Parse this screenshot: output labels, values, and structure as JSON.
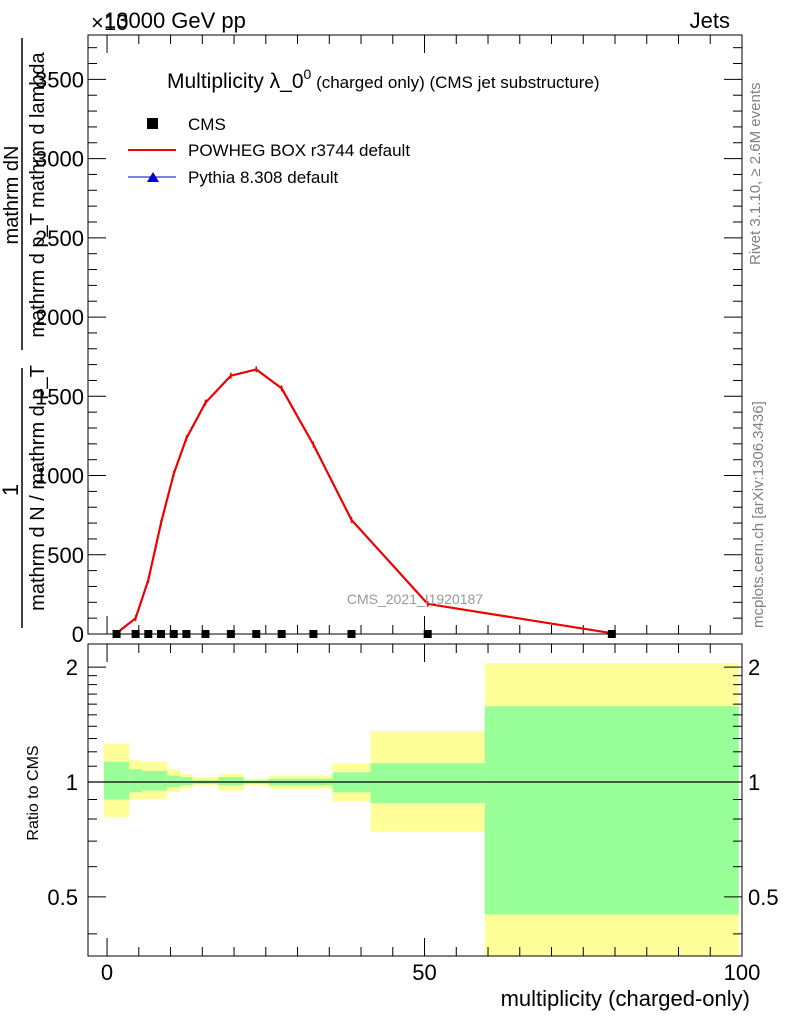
{
  "header": {
    "left": "13000 GeV pp",
    "right": "Jets",
    "exponent": "×10"
  },
  "side_text": {
    "upper": "Rivet 3.1.10, ≥ 2.6M events",
    "lower": "mcplots.cern.ch [arXiv:1306.3436]"
  },
  "colors": {
    "cms": "#000000",
    "powheg": "#ee0000",
    "pythia": "#0000cc",
    "band_inner": "#99ff99",
    "band_outer": "#ffff99"
  },
  "chart_data": [
    {
      "type": "line",
      "title_main": "Multiplicity λ_0",
      "title_sup": "0",
      "title_rest": " (charged only) (CMS jet substructure)",
      "watermark": "CMS_2021_I1920187",
      "ylabel_numerator": "mathrm dN",
      "ylabel_denominator": "mathrm d p_T mathrm d lambda",
      "ylabel_prefix_num": "1",
      "ylabel_prefix_den": "mathrm d N / mathrm d p_T",
      "xlim": [
        -3,
        100
      ],
      "ylim": [
        0,
        3780
      ],
      "yticks": [
        0,
        500,
        1000,
        1500,
        2000,
        2500,
        3000,
        3500
      ],
      "ytick_labels": [
        "0",
        "500",
        "1000",
        "1500",
        "2000",
        "2500",
        "3000",
        "3500"
      ],
      "legend": [
        {
          "label": "CMS",
          "marker": "square"
        },
        {
          "label": "POWHEG BOX r3744 default",
          "marker": "line"
        },
        {
          "label": "Pythia 8.308 default",
          "marker": "triangle"
        }
      ],
      "legend_placement": "top-left",
      "cms_points": {
        "x": [
          1.5,
          4.5,
          6.5,
          8.5,
          10.5,
          12.5,
          15.5,
          19.5,
          23.5,
          27.5,
          32.5,
          38.5,
          50.5,
          79.5
        ],
        "y": [
          0,
          0,
          0,
          0,
          0,
          0,
          0,
          0,
          0,
          0,
          0,
          0,
          0,
          0
        ]
      },
      "series": [
        {
          "name": "POWHEG BOX r3744 default",
          "x": [
            1.5,
            4.5,
            6.5,
            8.5,
            10.5,
            12.5,
            15.5,
            19.5,
            23.5,
            27.5,
            32.5,
            38.5,
            50.5,
            79.5
          ],
          "y": [
            5,
            100,
            340,
            700,
            1010,
            1235,
            1460,
            1630,
            1670,
            1550,
            1195,
            720,
            190,
            5
          ]
        }
      ]
    },
    {
      "type": "area",
      "ylabel": "Ratio to CMS",
      "xlabel": "multiplicity (charged-only)",
      "xlim": [
        -3,
        100
      ],
      "ylim": [
        0.35,
        2.3
      ],
      "log_y": true,
      "xticks": [
        0,
        50,
        100
      ],
      "xtick_labels": [
        "0",
        "50",
        "100"
      ],
      "yticks": [
        0.5,
        1,
        2
      ],
      "ytick_labels": [
        "0.5",
        "1",
        "2"
      ],
      "bins": [
        {
          "lo": -0.5,
          "hi": 3.5,
          "in_lo": 0.9,
          "in_hi": 1.13,
          "out_lo": 0.81,
          "out_hi": 1.26
        },
        {
          "lo": 3.5,
          "hi": 5.5,
          "in_lo": 0.94,
          "in_hi": 1.08,
          "out_lo": 0.9,
          "out_hi": 1.14
        },
        {
          "lo": 5.5,
          "hi": 9.5,
          "in_lo": 0.95,
          "in_hi": 1.07,
          "out_lo": 0.9,
          "out_hi": 1.13
        },
        {
          "lo": 9.5,
          "hi": 11.5,
          "in_lo": 0.97,
          "in_hi": 1.04,
          "out_lo": 0.94,
          "out_hi": 1.08
        },
        {
          "lo": 11.5,
          "hi": 13.5,
          "in_lo": 0.98,
          "in_hi": 1.03,
          "out_lo": 0.96,
          "out_hi": 1.05
        },
        {
          "lo": 13.5,
          "hi": 17.5,
          "in_lo": 0.99,
          "in_hi": 1.01,
          "out_lo": 0.98,
          "out_hi": 1.03
        },
        {
          "lo": 17.5,
          "hi": 21.5,
          "in_lo": 0.98,
          "in_hi": 1.03,
          "out_lo": 0.95,
          "out_hi": 1.05
        },
        {
          "lo": 21.5,
          "hi": 25.5,
          "in_lo": 0.99,
          "in_hi": 1.01,
          "out_lo": 0.98,
          "out_hi": 1.02
        },
        {
          "lo": 25.5,
          "hi": 35.5,
          "in_lo": 0.98,
          "in_hi": 1.02,
          "out_lo": 0.96,
          "out_hi": 1.04
        },
        {
          "lo": 35.5,
          "hi": 41.5,
          "in_lo": 0.94,
          "in_hi": 1.06,
          "out_lo": 0.89,
          "out_hi": 1.12
        },
        {
          "lo": 41.5,
          "hi": 59.5,
          "in_lo": 0.88,
          "in_hi": 1.12,
          "out_lo": 0.74,
          "out_hi": 1.36
        },
        {
          "lo": 59.5,
          "hi": 99.5,
          "in_lo": 0.45,
          "in_hi": 1.58,
          "out_lo": 0.35,
          "out_hi": 2.05
        }
      ]
    }
  ]
}
